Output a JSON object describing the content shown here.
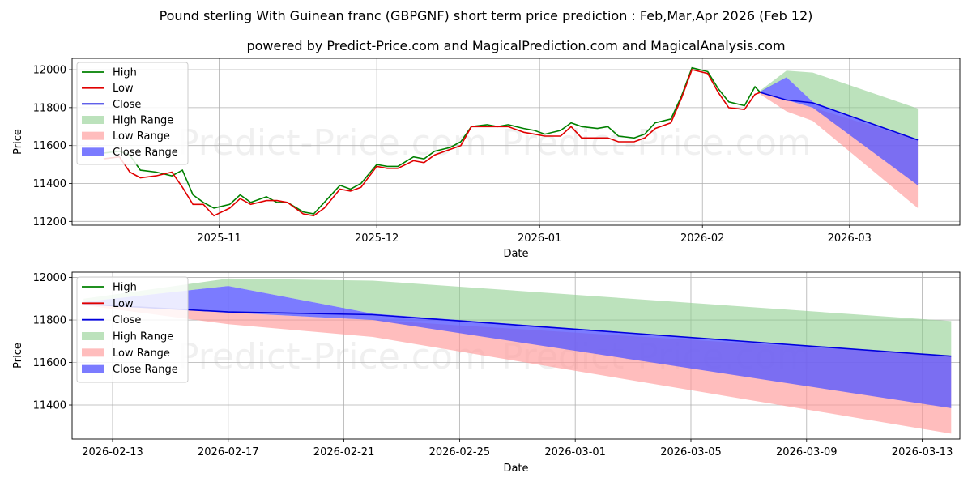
{
  "title_line1": "Pound sterling With Guinean franc (GBPGNF) short term price prediction : Feb,Mar,Apr 2026 (Feb 12)",
  "title_line2": "powered by Predict-Price.com and MagicalPrediction.com and MagicalAnalysis.com",
  "watermark": "Predict-Price.com",
  "colors": {
    "high": "#008000",
    "low": "#e00000",
    "close": "#0000dd",
    "high_range": "#8fce8f",
    "low_range": "#ff9a9a",
    "close_range": "#5a5aff"
  },
  "chart_data": [
    {
      "type": "line",
      "title": "",
      "xlabel": "Date",
      "ylabel": "Price",
      "xlim": [
        "2025-10-04",
        "2026-03-22"
      ],
      "ylim": [
        11180,
        12060
      ],
      "yticks": [
        11200,
        11400,
        11600,
        11800,
        12000
      ],
      "xticks": [
        {
          "date": "2025-11-01",
          "label": "2025-11"
        },
        {
          "date": "2025-12-01",
          "label": "2025-12"
        },
        {
          "date": "2026-01-01",
          "label": "2026-01"
        },
        {
          "date": "2026-02-01",
          "label": "2026-02"
        },
        {
          "date": "2026-03-01",
          "label": "2026-03"
        }
      ],
      "grid": true,
      "legend": {
        "placement": "top-left",
        "entries": [
          "High",
          "Low",
          "Close",
          "High Range",
          "Low Range",
          "Close Range"
        ]
      },
      "history_dates": [
        "2025-10-10",
        "2025-10-13",
        "2025-10-15",
        "2025-10-17",
        "2025-10-20",
        "2025-10-23",
        "2025-10-25",
        "2025-10-27",
        "2025-10-29",
        "2025-10-31",
        "2025-11-03",
        "2025-11-05",
        "2025-11-07",
        "2025-11-10",
        "2025-11-12",
        "2025-11-14",
        "2025-11-17",
        "2025-11-19",
        "2025-11-21",
        "2025-11-24",
        "2025-11-26",
        "2025-11-28",
        "2025-12-01",
        "2025-12-03",
        "2025-12-05",
        "2025-12-08",
        "2025-12-10",
        "2025-12-12",
        "2025-12-15",
        "2025-12-17",
        "2025-12-19",
        "2025-12-22",
        "2025-12-24",
        "2025-12-26",
        "2025-12-29",
        "2025-12-31",
        "2026-01-02",
        "2026-01-05",
        "2026-01-07",
        "2026-01-09",
        "2026-01-12",
        "2026-01-14",
        "2026-01-16",
        "2026-01-19",
        "2026-01-21",
        "2026-01-23",
        "2026-01-26",
        "2026-01-28",
        "2026-01-30",
        "2026-02-02",
        "2026-02-04",
        "2026-02-06",
        "2026-02-09",
        "2026-02-11",
        "2026-02-12"
      ],
      "series": [
        {
          "name": "High",
          "values": [
            11560,
            11570,
            11550,
            11470,
            11460,
            11440,
            11470,
            11340,
            11300,
            11270,
            11290,
            11340,
            11300,
            11330,
            11300,
            11300,
            11250,
            11240,
            11300,
            11390,
            11370,
            11400,
            11500,
            11490,
            11490,
            11540,
            11530,
            11570,
            11590,
            11620,
            11700,
            11710,
            11700,
            11710,
            11690,
            11680,
            11660,
            11680,
            11720,
            11700,
            11690,
            11700,
            11650,
            11640,
            11660,
            11720,
            11740,
            11860,
            12010,
            11990,
            11900,
            11830,
            11810,
            11910,
            11880
          ]
        },
        {
          "name": "Low",
          "values": [
            11530,
            11540,
            11460,
            11430,
            11440,
            11460,
            11380,
            11290,
            11290,
            11230,
            11270,
            11320,
            11290,
            11310,
            11310,
            11300,
            11240,
            11230,
            11270,
            11370,
            11360,
            11380,
            11490,
            11480,
            11480,
            11520,
            11510,
            11550,
            11580,
            11600,
            11700,
            11700,
            11700,
            11700,
            11670,
            11660,
            11650,
            11650,
            11700,
            11640,
            11640,
            11640,
            11620,
            11620,
            11640,
            11690,
            11720,
            11850,
            12000,
            11980,
            11880,
            11800,
            11790,
            11870,
            11880
          ]
        },
        {
          "name": "Close",
          "values": [
            11545,
            11555,
            11500,
            11450,
            11450,
            11450,
            11420,
            11320,
            11295,
            11250,
            11280,
            11330,
            11295,
            11320,
            11305,
            11300,
            11245,
            11235,
            11285,
            11380,
            11365,
            11390,
            11495,
            11485,
            11485,
            11530,
            11520,
            11560,
            11585,
            11610,
            11700,
            11705,
            11700,
            11705,
            11680,
            11670,
            11655,
            11665,
            11710,
            11670,
            11665,
            11670,
            11635,
            11630,
            11650,
            11705,
            11730,
            11855,
            12005,
            11985,
            11890,
            11815,
            11800,
            11890,
            11880
          ]
        },
        {
          "name": "High Range",
          "dates": [
            "2026-02-12",
            "2026-02-17",
            "2026-02-22",
            "2026-03-14"
          ],
          "upper": [
            11890,
            11995,
            11985,
            11795
          ],
          "lower": [
            11880,
            11960,
            11830,
            11630
          ]
        },
        {
          "name": "Low Range",
          "dates": [
            "2026-02-12",
            "2026-02-17",
            "2026-02-22",
            "2026-03-14"
          ],
          "upper": [
            11880,
            11840,
            11800,
            11630
          ],
          "lower": [
            11870,
            11780,
            11730,
            11270
          ]
        },
        {
          "name": "Close Range",
          "dates": [
            "2026-02-12",
            "2026-02-17",
            "2026-02-22",
            "2026-03-14"
          ],
          "upper": [
            11885,
            11960,
            11830,
            11630
          ],
          "lower": [
            11880,
            11840,
            11800,
            11390
          ]
        },
        {
          "name": "Close Forecast",
          "dates": [
            "2026-02-12",
            "2026-02-17",
            "2026-02-22",
            "2026-03-14"
          ],
          "values": [
            11880,
            11840,
            11825,
            11630
          ]
        }
      ]
    },
    {
      "type": "line",
      "title": "",
      "xlabel": "Date",
      "ylabel": "Price",
      "xlim": [
        "2026-02-11.6",
        "2026-03-14.3"
      ],
      "ylim": [
        11240,
        12025
      ],
      "yticks": [
        11400,
        11600,
        11800,
        12000
      ],
      "xticks": [
        {
          "date": "2026-02-13",
          "label": "2026-02-13"
        },
        {
          "date": "2026-02-17",
          "label": "2026-02-17"
        },
        {
          "date": "2026-02-21",
          "label": "2026-02-21"
        },
        {
          "date": "2026-02-25",
          "label": "2026-02-25"
        },
        {
          "date": "2026-03-01",
          "label": "2026-03-01"
        },
        {
          "date": "2026-03-05",
          "label": "2026-03-05"
        },
        {
          "date": "2026-03-09",
          "label": "2026-03-09"
        },
        {
          "date": "2026-03-13",
          "label": "2026-03-13"
        }
      ],
      "grid": true,
      "legend": {
        "placement": "top-left",
        "entries": [
          "High",
          "Low",
          "Close",
          "High Range",
          "Low Range",
          "Close Range"
        ]
      },
      "series": [
        {
          "name": "High Range",
          "dates": [
            "2026-02-12",
            "2026-02-17",
            "2026-02-22",
            "2026-03-14"
          ],
          "upper": [
            11900,
            11995,
            11985,
            11795
          ],
          "lower": [
            11885,
            11960,
            11830,
            11630
          ]
        },
        {
          "name": "Low Range",
          "dates": [
            "2026-02-12",
            "2026-02-17",
            "2026-02-22",
            "2026-03-14"
          ],
          "upper": [
            11875,
            11835,
            11800,
            11630
          ],
          "lower": [
            11870,
            11780,
            11720,
            11265
          ]
        },
        {
          "name": "Close Range",
          "dates": [
            "2026-02-12",
            "2026-02-17",
            "2026-02-22",
            "2026-03-14"
          ],
          "upper": [
            11885,
            11960,
            11830,
            11630
          ],
          "lower": [
            11875,
            11835,
            11800,
            11385
          ]
        },
        {
          "name": "Close Forecast",
          "dates": [
            "2026-02-12",
            "2026-02-17",
            "2026-02-22",
            "2026-03-14"
          ],
          "values": [
            11875,
            11838,
            11825,
            11630
          ]
        }
      ]
    }
  ]
}
